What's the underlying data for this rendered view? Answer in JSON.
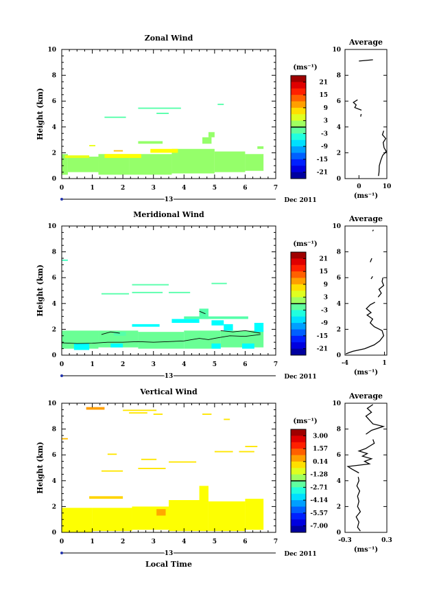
{
  "chart_data": [
    {
      "type": "heatmap",
      "title": "Zonal Wind",
      "ylabel": "Height (km)",
      "xlabel": "",
      "xlim": [
        0,
        7
      ],
      "ylim": [
        0,
        10
      ],
      "x_ticks": [
        "0",
        "1",
        "2",
        "3",
        "4",
        "5",
        "6",
        "7"
      ],
      "y_ticks": [
        "0",
        "2",
        "4",
        "6",
        "8",
        "10"
      ],
      "date_day": "13",
      "date_label": "Dec 2011",
      "colorbar": {
        "unit": "(ms⁻¹)",
        "ticks": [
          "21",
          "15",
          "9",
          "3",
          "-3",
          "-9",
          "-15",
          "-21"
        ],
        "min": -24,
        "max": 24
      },
      "cells": [
        {
          "x0": 0.0,
          "x1": 0.2,
          "y0": 0.3,
          "y1": 1.9,
          "v": 1
        },
        {
          "x0": 0.2,
          "x1": 1.2,
          "y0": 0.5,
          "y1": 1.7,
          "v": 1
        },
        {
          "x0": 1.2,
          "x1": 2.2,
          "y0": 0.3,
          "y1": 1.9,
          "v": 1
        },
        {
          "x0": 2.2,
          "x1": 3.6,
          "y0": 0.3,
          "y1": 1.9,
          "v": 1
        },
        {
          "x0": 3.6,
          "x1": 5.0,
          "y0": 0.4,
          "y1": 2.3,
          "v": 1
        },
        {
          "x0": 5.0,
          "x1": 6.0,
          "y0": 0.5,
          "y1": 2.1,
          "v": 1
        },
        {
          "x0": 6.0,
          "x1": 6.6,
          "y0": 0.6,
          "y1": 1.9,
          "v": 1
        },
        {
          "x0": 0.1,
          "x1": 0.9,
          "y0": 1.6,
          "y1": 1.8,
          "v": 5
        },
        {
          "x0": 1.4,
          "x1": 2.6,
          "y0": 1.6,
          "y1": 1.9,
          "v": 6
        },
        {
          "x0": 2.9,
          "x1": 3.8,
          "y0": 2.0,
          "y1": 2.3,
          "v": 6
        },
        {
          "x0": 1.7,
          "x1": 2.0,
          "y0": 2.1,
          "y1": 2.2,
          "v": 9
        },
        {
          "x0": 0.9,
          "x1": 1.1,
          "y0": 2.5,
          "y1": 2.6,
          "v": 5
        },
        {
          "x0": 4.6,
          "x1": 4.9,
          "y0": 2.7,
          "y1": 3.2,
          "v": 1
        },
        {
          "x0": 4.8,
          "x1": 5.0,
          "y0": 3.2,
          "y1": 3.6,
          "v": 1
        },
        {
          "x0": 6.4,
          "x1": 6.6,
          "y0": 2.3,
          "y1": 2.5,
          "v": 1
        },
        {
          "x0": 2.5,
          "x1": 3.3,
          "y0": 2.7,
          "y1": 2.9,
          "v": 1
        },
        {
          "x0": 1.4,
          "x1": 2.1,
          "y0": 4.7,
          "y1": 4.8,
          "v": -2
        },
        {
          "x0": 3.1,
          "x1": 3.5,
          "y0": 5.0,
          "y1": 5.1,
          "v": -2
        },
        {
          "x0": 2.5,
          "x1": 3.9,
          "y0": 5.4,
          "y1": 5.5,
          "v": -2
        },
        {
          "x0": 5.1,
          "x1": 5.3,
          "y0": 5.7,
          "y1": 5.8,
          "v": -2
        }
      ],
      "zero_contour": [],
      "average": {
        "title": "Average",
        "unit": "(ms⁻¹)",
        "xlim": [
          -5,
          10
        ],
        "x_ticks": [
          {
            "v": 0,
            "l": "0"
          },
          {
            "v": 10,
            "l": "10"
          }
        ],
        "y_ticks": [
          "0",
          "2",
          "4",
          "6",
          "8",
          "10"
        ],
        "profile": [
          [
            [
              0.2,
              7.0
            ],
            [
              0.5,
              7.2
            ],
            [
              1.0,
              7.3
            ],
            [
              1.4,
              7.8
            ],
            [
              1.8,
              8.5
            ],
            [
              2.1,
              9.8
            ],
            [
              2.4,
              9.0
            ],
            [
              2.8,
              8.7
            ],
            [
              3.1,
              9.6
            ],
            [
              3.4,
              8.4
            ],
            [
              3.7,
              8.9
            ]
          ],
          [
            [
              4.8,
              0.6
            ],
            [
              5.0,
              0.8
            ]
          ],
          [
            [
              5.3,
              0.9
            ],
            [
              5.5,
              -1.5
            ],
            [
              5.7,
              -1.0
            ],
            [
              5.9,
              -2.0
            ],
            [
              6.1,
              -0.5
            ]
          ],
          [
            [
              9.1,
              0.0
            ],
            [
              9.2,
              5.0
            ]
          ]
        ]
      }
    },
    {
      "type": "heatmap",
      "title": "Meridional Wind",
      "ylabel": "Height (km)",
      "xlabel": "",
      "xlim": [
        0,
        7
      ],
      "ylim": [
        0,
        10
      ],
      "x_ticks": [
        "0",
        "1",
        "2",
        "3",
        "4",
        "5",
        "6",
        "7"
      ],
      "y_ticks": [
        "0",
        "2",
        "4",
        "6",
        "8",
        "10"
      ],
      "date_day": "13",
      "date_label": "Dec 2011",
      "colorbar": {
        "unit": "(ms⁻¹)",
        "ticks": [
          "21",
          "15",
          "9",
          "3",
          "-3",
          "-9",
          "-15",
          "-21"
        ],
        "min": -24,
        "max": 24
      },
      "cells": [
        {
          "x0": 0.0,
          "x1": 1.2,
          "y0": 0.5,
          "y1": 1.9,
          "v": -1
        },
        {
          "x0": 1.2,
          "x1": 2.5,
          "y0": 0.6,
          "y1": 1.9,
          "v": -1
        },
        {
          "x0": 2.5,
          "x1": 4.0,
          "y0": 0.5,
          "y1": 1.8,
          "v": -1
        },
        {
          "x0": 4.0,
          "x1": 5.2,
          "y0": 0.5,
          "y1": 1.9,
          "v": -1
        },
        {
          "x0": 5.2,
          "x1": 6.6,
          "y0": 0.6,
          "y1": 1.9,
          "v": -1
        },
        {
          "x0": 0.4,
          "x1": 0.9,
          "y0": 0.4,
          "y1": 0.9,
          "v": -6
        },
        {
          "x0": 1.6,
          "x1": 2.0,
          "y0": 0.6,
          "y1": 0.9,
          "v": -6
        },
        {
          "x0": 4.9,
          "x1": 5.2,
          "y0": 0.5,
          "y1": 0.9,
          "v": -6
        },
        {
          "x0": 5.9,
          "x1": 6.3,
          "y0": 0.5,
          "y1": 0.9,
          "v": -6
        },
        {
          "x0": 6.3,
          "x1": 6.6,
          "y0": 1.8,
          "y1": 2.5,
          "v": -6
        },
        {
          "x0": 5.3,
          "x1": 5.6,
          "y0": 1.9,
          "y1": 2.4,
          "v": -6
        },
        {
          "x0": 2.3,
          "x1": 3.2,
          "y0": 2.2,
          "y1": 2.4,
          "v": -6
        },
        {
          "x0": 3.6,
          "x1": 4.5,
          "y0": 2.5,
          "y1": 2.8,
          "v": -6
        },
        {
          "x0": 4.9,
          "x1": 5.3,
          "y0": 2.3,
          "y1": 2.7,
          "v": -6
        },
        {
          "x0": 1.7,
          "x1": 2.1,
          "y0": 1.5,
          "y1": 1.8,
          "v": -2
        },
        {
          "x0": 4.5,
          "x1": 4.8,
          "y0": 2.8,
          "y1": 3.6,
          "v": -2
        },
        {
          "x0": 4.0,
          "x1": 6.1,
          "y0": 2.8,
          "y1": 3.0,
          "v": -2
        },
        {
          "x0": 0.0,
          "x1": 0.2,
          "y0": 7.3,
          "y1": 7.4,
          "v": -3
        },
        {
          "x0": 1.3,
          "x1": 2.2,
          "y0": 4.7,
          "y1": 4.8,
          "v": -2
        },
        {
          "x0": 2.3,
          "x1": 3.3,
          "y0": 4.8,
          "y1": 4.9,
          "v": -2
        },
        {
          "x0": 3.5,
          "x1": 4.2,
          "y0": 4.8,
          "y1": 4.9,
          "v": -2
        },
        {
          "x0": 2.3,
          "x1": 3.5,
          "y0": 5.4,
          "y1": 5.5,
          "v": -2
        },
        {
          "x0": 4.9,
          "x1": 5.4,
          "y0": 5.5,
          "y1": 5.6,
          "v": -2
        }
      ],
      "zero_contour": [
        [
          [
            0.0,
            0.95
          ],
          [
            0.5,
            0.9
          ],
          [
            1.0,
            0.92
          ],
          [
            1.5,
            1.0
          ],
          [
            2.0,
            1.0
          ],
          [
            2.5,
            1.05
          ],
          [
            3.0,
            1.0
          ],
          [
            3.5,
            1.05
          ],
          [
            4.0,
            1.1
          ],
          [
            4.5,
            1.3
          ],
          [
            4.8,
            1.2
          ],
          [
            5.0,
            1.3
          ],
          [
            5.5,
            1.5
          ],
          [
            6.0,
            1.45
          ],
          [
            6.5,
            1.6
          ]
        ],
        [
          [
            1.3,
            1.6
          ],
          [
            1.6,
            1.8
          ],
          [
            1.9,
            1.7
          ]
        ],
        [
          [
            5.2,
            1.9
          ],
          [
            5.6,
            1.8
          ],
          [
            6.0,
            1.9
          ],
          [
            6.5,
            1.7
          ]
        ],
        [
          [
            4.5,
            3.4
          ],
          [
            4.7,
            3.2
          ]
        ]
      ],
      "average": {
        "title": "Average",
        "unit": "(ms⁻¹)",
        "xlim": [
          -4,
          1.3
        ],
        "x_ticks": [
          {
            "v": -4,
            "l": "-4"
          },
          {
            "v": 1,
            "l": "1"
          }
        ],
        "y_ticks": [
          "0",
          "2",
          "4",
          "6",
          "8",
          "10"
        ],
        "profile": [
          [
            [
              0.1,
              -3.9
            ],
            [
              0.3,
              -3.0
            ],
            [
              0.5,
              -1.5
            ],
            [
              0.8,
              -0.3
            ],
            [
              1.1,
              0.4
            ],
            [
              1.5,
              0.9
            ],
            [
              1.9,
              0.7
            ],
            [
              2.2,
              -0.3
            ],
            [
              2.5,
              -0.8
            ],
            [
              2.8,
              -0.5
            ],
            [
              3.1,
              -1.2
            ],
            [
              3.3,
              -0.7
            ],
            [
              3.6,
              -1.3
            ],
            [
              3.9,
              -0.8
            ],
            [
              4.1,
              -0.2
            ]
          ],
          [
            [
              4.5,
              0.2
            ],
            [
              4.8,
              0.6
            ],
            [
              5.1,
              0.3
            ],
            [
              5.4,
              0.9
            ],
            [
              5.7,
              0.7
            ],
            [
              6.0,
              0.8
            ]
          ],
          [
            [
              5.9,
              -0.7
            ],
            [
              6.1,
              -0.5
            ]
          ],
          [
            [
              7.2,
              -0.8
            ],
            [
              7.5,
              -0.6
            ]
          ],
          [
            [
              9.6,
              -0.5
            ],
            [
              9.7,
              -0.4
            ]
          ]
        ]
      }
    },
    {
      "type": "heatmap",
      "title": "Vertical Wind",
      "ylabel": "Height (km)",
      "xlabel": "Local Time",
      "xlim": [
        0,
        7
      ],
      "ylim": [
        0,
        10
      ],
      "x_ticks": [
        "0",
        "1",
        "2",
        "3",
        "4",
        "5",
        "6",
        "7"
      ],
      "y_ticks": [
        "0",
        "2",
        "4",
        "6",
        "8",
        "10"
      ],
      "date_day": "13",
      "date_label": "Dec 2011",
      "colorbar": {
        "unit": "(ms⁻¹)",
        "ticks": [
          "3.00",
          "1.57",
          "0.14",
          "-1.28",
          "-2.71",
          "-4.14",
          "-5.57",
          "-7.00"
        ],
        "min": -7.7,
        "max": 3.7
      },
      "cells": [
        {
          "x0": 0.0,
          "x1": 1.0,
          "y0": 0.0,
          "y1": 1.9,
          "v": -0.6
        },
        {
          "x0": 1.0,
          "x1": 2.3,
          "y0": 0.1,
          "y1": 1.9,
          "v": -0.6
        },
        {
          "x0": 2.3,
          "x1": 3.5,
          "y0": 0.2,
          "y1": 2.0,
          "v": -0.6
        },
        {
          "x0": 3.5,
          "x1": 4.8,
          "y0": 0.1,
          "y1": 2.5,
          "v": -0.6
        },
        {
          "x0": 4.8,
          "x1": 6.0,
          "y0": 0.1,
          "y1": 2.4,
          "v": -0.6
        },
        {
          "x0": 6.0,
          "x1": 6.6,
          "y0": 0.2,
          "y1": 2.6,
          "v": -0.6
        },
        {
          "x0": 4.5,
          "x1": 4.8,
          "y0": 2.5,
          "y1": 3.6,
          "v": -0.6
        },
        {
          "x0": 0.9,
          "x1": 2.0,
          "y0": 2.6,
          "y1": 2.8,
          "v": -0.1
        },
        {
          "x0": 3.1,
          "x1": 3.4,
          "y0": 1.3,
          "y1": 1.8,
          "v": 0.4
        },
        {
          "x0": 0.0,
          "x1": 0.2,
          "y0": 7.2,
          "y1": 7.3,
          "v": 0.2
        },
        {
          "x0": 0.8,
          "x1": 1.4,
          "y0": 9.5,
          "y1": 9.7,
          "v": 0.5
        },
        {
          "x0": 2.0,
          "x1": 3.1,
          "y0": 9.4,
          "y1": 9.5,
          "v": -0.3
        },
        {
          "x0": 3.0,
          "x1": 3.3,
          "y0": 9.1,
          "y1": 9.2,
          "v": -0.3
        },
        {
          "x0": 2.2,
          "x1": 2.8,
          "y0": 9.2,
          "y1": 9.3,
          "v": -0.3
        },
        {
          "x0": 4.6,
          "x1": 4.9,
          "y0": 9.1,
          "y1": 9.2,
          "v": -0.3
        },
        {
          "x0": 5.3,
          "x1": 5.5,
          "y0": 8.7,
          "y1": 8.8,
          "v": -0.3
        },
        {
          "x0": 1.5,
          "x1": 1.8,
          "y0": 6.0,
          "y1": 6.1,
          "v": -0.3
        },
        {
          "x0": 2.6,
          "x1": 3.1,
          "y0": 5.6,
          "y1": 5.7,
          "v": -0.3
        },
        {
          "x0": 3.5,
          "x1": 4.4,
          "y0": 5.4,
          "y1": 5.5,
          "v": -0.3
        },
        {
          "x0": 2.5,
          "x1": 3.4,
          "y0": 4.9,
          "y1": 5.0,
          "v": -0.3
        },
        {
          "x0": 1.3,
          "x1": 2.0,
          "y0": 4.7,
          "y1": 4.8,
          "v": -0.3
        },
        {
          "x0": 5.0,
          "x1": 5.6,
          "y0": 6.2,
          "y1": 6.3,
          "v": -0.3
        },
        {
          "x0": 5.8,
          "x1": 6.3,
          "y0": 6.2,
          "y1": 6.3,
          "v": -0.3
        },
        {
          "x0": 6.0,
          "x1": 6.4,
          "y0": 6.6,
          "y1": 6.7,
          "v": -0.3
        }
      ],
      "zero_contour": [],
      "average": {
        "title": "Average",
        "unit": "(ms⁻¹)",
        "xlim": [
          -0.3,
          0.3
        ],
        "x_ticks": [
          {
            "v": -0.3,
            "l": "-0.3"
          },
          {
            "v": 0.3,
            "l": "0.3"
          }
        ],
        "y_ticks": [
          "0",
          "2",
          "4",
          "6",
          "8",
          "10"
        ],
        "profile": [
          [
            [
              0.1,
              -0.08
            ],
            [
              0.4,
              -0.12
            ],
            [
              0.8,
              -0.1
            ],
            [
              1.2,
              -0.14
            ],
            [
              1.6,
              -0.08
            ],
            [
              2.0,
              -0.12
            ],
            [
              2.4,
              -0.1
            ],
            [
              2.8,
              -0.12
            ],
            [
              3.2,
              -0.09
            ],
            [
              3.6,
              -0.13
            ],
            [
              4.0,
              -0.1
            ],
            [
              4.3,
              -0.11
            ]
          ],
          [
            [
              4.6,
              -0.1
            ],
            [
              4.9,
              -0.2
            ],
            [
              5.1,
              -0.26
            ],
            [
              5.3,
              0.05
            ],
            [
              5.5,
              -0.02
            ],
            [
              5.7,
              0.08
            ],
            [
              5.9,
              -0.05
            ],
            [
              6.1,
              0.02
            ],
            [
              6.3,
              -0.1
            ],
            [
              6.5,
              0.0
            ],
            [
              6.7,
              0.06
            ],
            [
              6.9,
              0.12
            ],
            [
              7.2,
              0.1
            ]
          ],
          [
            [
              7.6,
              0.0
            ],
            [
              7.9,
              0.08
            ],
            [
              8.2,
              0.25
            ],
            [
              8.4,
              0.1
            ],
            [
              8.7,
              0.05
            ],
            [
              9.0,
              0.0
            ],
            [
              9.3,
              0.08
            ],
            [
              9.6,
              0.02
            ],
            [
              9.9,
              0.1
            ]
          ]
        ]
      }
    }
  ]
}
